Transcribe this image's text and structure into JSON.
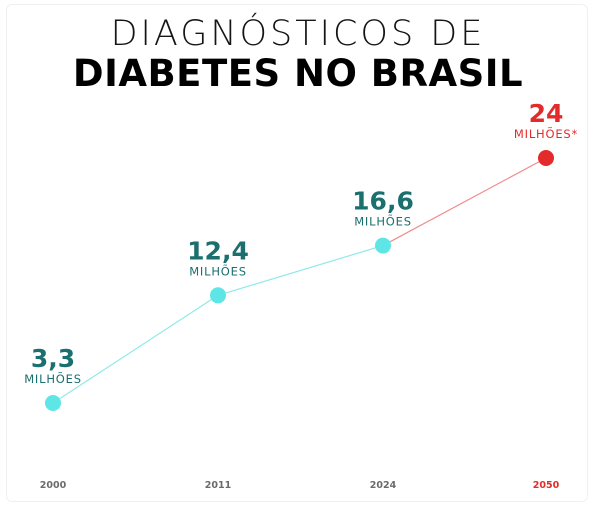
{
  "title": {
    "line1": "DIAGNÓSTICOS DE",
    "line2": "DIABETES NO BRASIL"
  },
  "colors": {
    "point": "#5ee6e6",
    "line": "#8fe9e9",
    "value_text": "#1b6f6f",
    "projection": "#e32b2b",
    "year_text": "#6b6b6b"
  },
  "chart_data": {
    "type": "line",
    "title": "DIAGNÓSTICOS DE DIABETES NO BRASIL",
    "xlabel": "",
    "ylabel": "",
    "x": [
      "2000",
      "2011",
      "2024",
      "2050"
    ],
    "series": [
      {
        "values": [
          3.3,
          12.4,
          16.6,
          24
        ],
        "labels": [
          "3,3",
          "12,4",
          "16,6",
          "24"
        ],
        "units": [
          "MILHÕES",
          "MILHÕES",
          "MILHÕES",
          "MILHÕES*"
        ],
        "projected": [
          false,
          false,
          false,
          true
        ]
      }
    ],
    "grid": false,
    "legend": "none"
  }
}
